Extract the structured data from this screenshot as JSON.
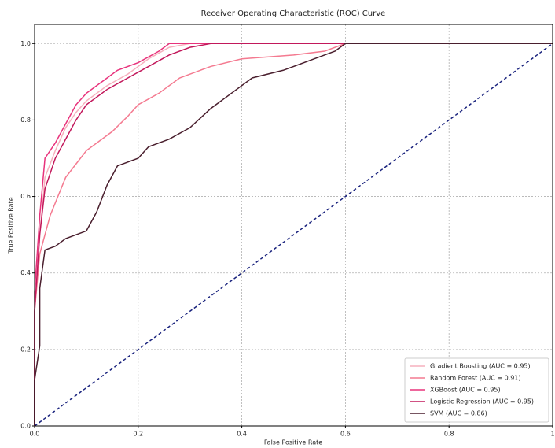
{
  "chart_data": {
    "type": "line",
    "title": "Receiver Operating Characteristic (ROC) Curve",
    "x_label": "False Positive Rate",
    "y_label": "True Positive Rate",
    "xlim": [
      0,
      1
    ],
    "ylim": [
      0,
      1.05
    ],
    "xticks": [
      {
        "value": 0,
        "label": "0.0"
      },
      {
        "value": 0.2,
        "label": "0.2"
      },
      {
        "value": 0.4,
        "label": "0.4"
      },
      {
        "value": 0.6,
        "label": "0.6"
      },
      {
        "value": 0.8,
        "label": "0.8"
      },
      1
    ],
    "yticks": [
      {
        "value": 0,
        "label": "0.0"
      },
      {
        "value": 0.2,
        "label": "0.2"
      },
      {
        "value": 0.4,
        "label": "0.4"
      },
      {
        "value": 0.6,
        "label": "0.6"
      },
      {
        "value": 0.8,
        "label": "0.8"
      },
      {
        "value": 1,
        "label": "1.0"
      }
    ],
    "grid": true,
    "legend": "lower right",
    "series": [
      {
        "name": "Gradient Boosting (AUC = 0.95)",
        "color": "#f6b0bd",
        "x": [
          0,
          0,
          0.01,
          0.02,
          0.04,
          0.06,
          0.08,
          0.1,
          0.14,
          0.18,
          0.22,
          0.26,
          0.3,
          1
        ],
        "values": [
          0,
          0.3,
          0.5,
          0.65,
          0.72,
          0.78,
          0.82,
          0.85,
          0.89,
          0.92,
          0.96,
          0.99,
          1.0,
          1
        ]
      },
      {
        "name": "Random Forest (AUC = 0.91)",
        "color": "#f47a90",
        "x": [
          0,
          0,
          0.01,
          0.03,
          0.06,
          0.1,
          0.15,
          0.18,
          0.2,
          0.24,
          0.28,
          0.34,
          0.4,
          0.5,
          0.56,
          0.6,
          1
        ],
        "values": [
          0,
          0.3,
          0.45,
          0.55,
          0.65,
          0.72,
          0.77,
          0.81,
          0.84,
          0.87,
          0.91,
          0.94,
          0.96,
          0.97,
          0.98,
          1.0,
          1
        ]
      },
      {
        "name": "XGBoost (AUC = 0.95)",
        "color": "#e8337c",
        "x": [
          0,
          0,
          0.01,
          0.02,
          0.04,
          0.06,
          0.08,
          0.1,
          0.13,
          0.16,
          0.2,
          0.24,
          0.26,
          1
        ],
        "values": [
          0,
          0.35,
          0.55,
          0.7,
          0.74,
          0.79,
          0.84,
          0.87,
          0.9,
          0.93,
          0.95,
          0.98,
          1.0,
          1
        ]
      },
      {
        "name": "Logistic Regression (AUC = 0.95)",
        "color": "#c2185b",
        "x": [
          0,
          0,
          0.01,
          0.02,
          0.04,
          0.06,
          0.08,
          0.1,
          0.14,
          0.18,
          0.22,
          0.26,
          0.3,
          0.34,
          1
        ],
        "values": [
          0,
          0.3,
          0.5,
          0.62,
          0.7,
          0.75,
          0.8,
          0.84,
          0.88,
          0.91,
          0.94,
          0.97,
          0.99,
          1.0,
          1
        ]
      },
      {
        "name": "SVM (AUC = 0.86)",
        "color": "#4a1f2e",
        "x": [
          0,
          0,
          0.01,
          0.01,
          0.02,
          0.04,
          0.06,
          0.1,
          0.12,
          0.14,
          0.16,
          0.2,
          0.22,
          0.26,
          0.3,
          0.34,
          0.38,
          0.42,
          0.48,
          0.54,
          0.58,
          0.6,
          1
        ],
        "values": [
          0,
          0.12,
          0.21,
          0.36,
          0.46,
          0.47,
          0.49,
          0.51,
          0.56,
          0.63,
          0.68,
          0.7,
          0.73,
          0.75,
          0.78,
          0.83,
          0.87,
          0.91,
          0.93,
          0.96,
          0.98,
          1.0,
          1
        ]
      }
    ],
    "reference_line": {
      "x": [
        0,
        1
      ],
      "y": [
        0,
        1
      ],
      "color": "#1a237e",
      "dashed": true
    }
  }
}
